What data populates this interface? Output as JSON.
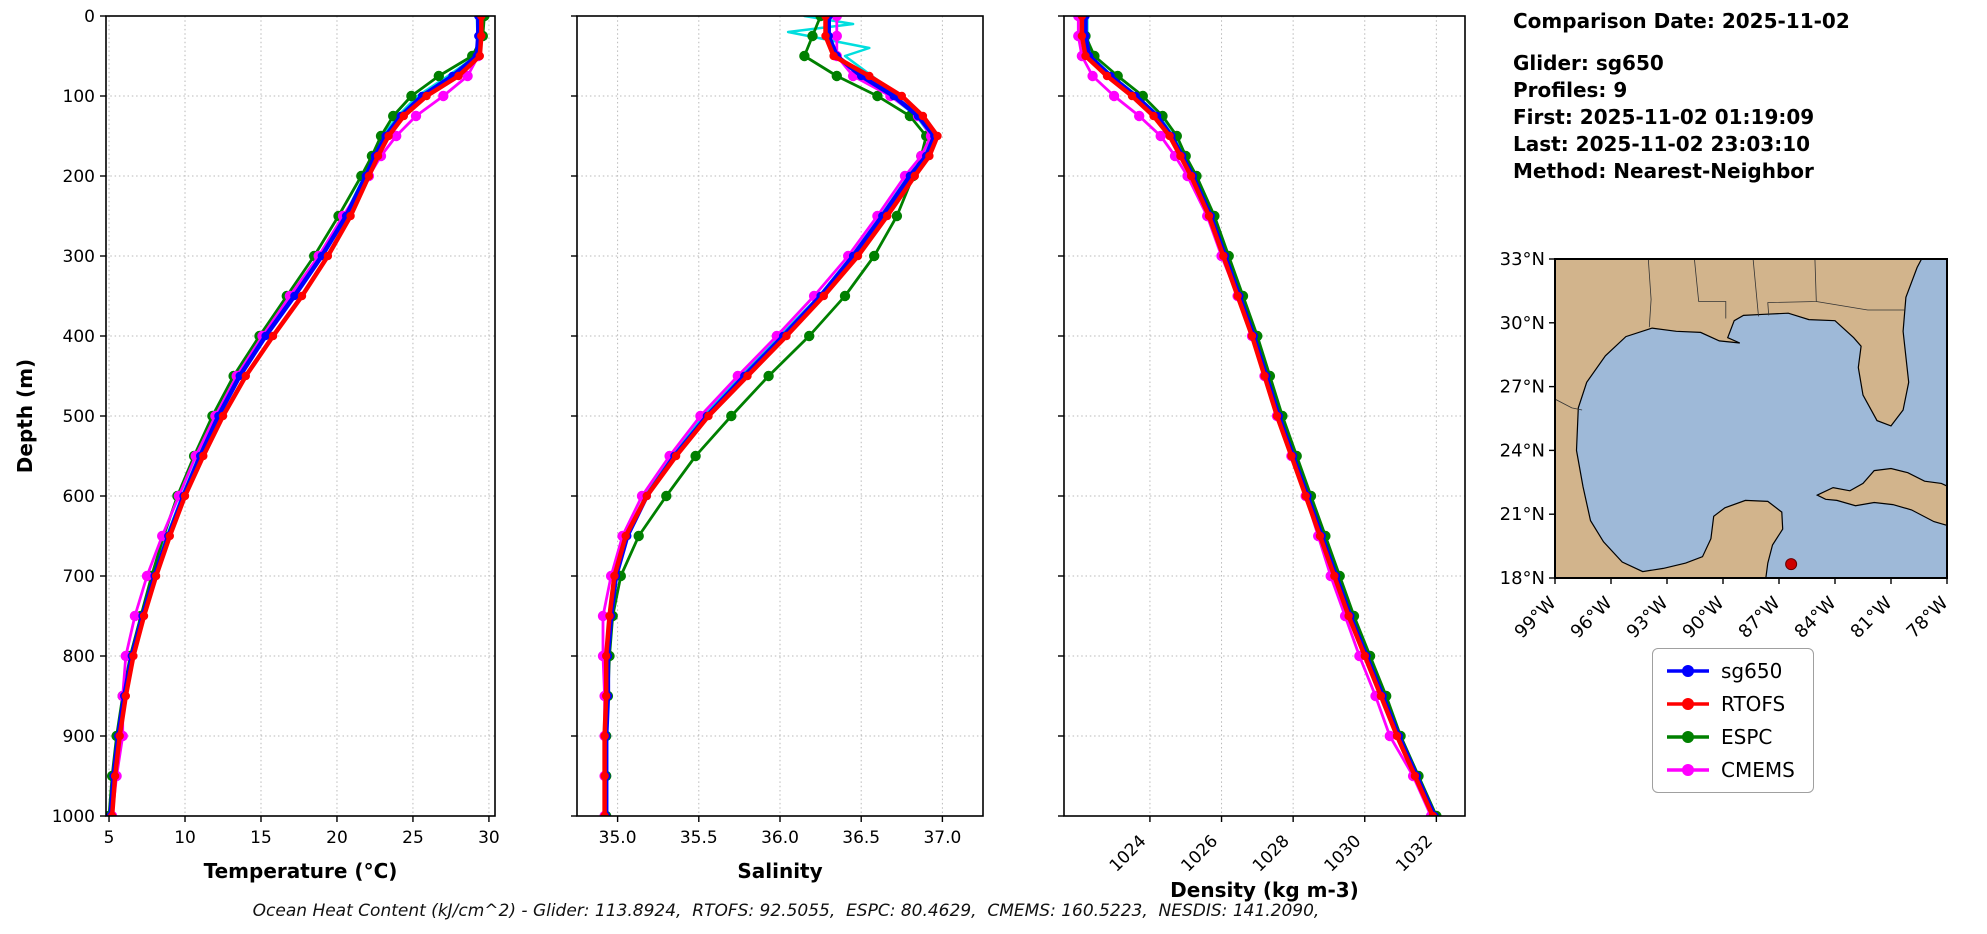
{
  "info_panel": {
    "lines": [
      "Comparison Date: 2025-11-02",
      "",
      "Glider: sg650",
      "Profiles: 9",
      "First: 2025-11-02 01:19:09",
      "Last: 2025-11-02 23:03:10",
      "Method: Nearest-Neighbor"
    ]
  },
  "caption": "Ocean Heat Content (kJ/cm^2) - Glider: 113.8924,  RTOFS: 92.5055,  ESPC: 80.4629,  CMEMS: 160.5223,  NESDIS: 141.2090,",
  "legend": {
    "items": [
      {
        "label": "sg650",
        "color": "#0000ff"
      },
      {
        "label": "RTOFS",
        "color": "#ff0000"
      },
      {
        "label": "ESPC",
        "color": "#008000"
      },
      {
        "label": "CMEMS",
        "color": "#ff00ff"
      }
    ]
  },
  "map": {
    "extent": {
      "lon_west": 99,
      "lon_east": 78,
      "lat_south": 18,
      "lat_north": 33
    },
    "land_color": "#d2b48c",
    "water_color": "#9eb9d8",
    "marker": {
      "lon": 86.35,
      "lat": 18.65,
      "color": "#cc0000"
    },
    "lat_ticks": [
      {
        "value": 33,
        "label": "33°N"
      },
      {
        "value": 30,
        "label": "30°N"
      },
      {
        "value": 27,
        "label": "27°N"
      },
      {
        "value": 24,
        "label": "24°N"
      },
      {
        "value": 21,
        "label": "21°N"
      },
      {
        "value": 18,
        "label": "18°N"
      }
    ],
    "lon_ticks": [
      {
        "value": 99,
        "label": "99°W"
      },
      {
        "value": 96,
        "label": "96°W"
      },
      {
        "value": 93,
        "label": "93°W"
      },
      {
        "value": 90,
        "label": "90°W"
      },
      {
        "value": 87,
        "label": "87°W"
      },
      {
        "value": 84,
        "label": "84°W"
      },
      {
        "value": 81,
        "label": "81°W"
      },
      {
        "value": 78,
        "label": "78°W"
      }
    ]
  },
  "chart_data": [
    {
      "type": "line",
      "xlabel": "Temperature (°C)",
      "ylabel": "Depth (m)",
      "xlim": [
        4.8,
        30.4
      ],
      "ylim": [
        0,
        1000
      ],
      "xticks": [
        5,
        10,
        15,
        20,
        25,
        30
      ],
      "xtick_labels": [
        "5",
        "10",
        "15",
        "20",
        "25",
        "30"
      ],
      "yticks": [
        0,
        100,
        200,
        300,
        400,
        500,
        600,
        700,
        800,
        900,
        1000
      ],
      "grid": true,
      "depths": [
        0,
        25,
        50,
        75,
        100,
        125,
        150,
        175,
        200,
        250,
        300,
        350,
        400,
        450,
        500,
        550,
        600,
        650,
        700,
        750,
        800,
        850,
        900,
        950,
        1000
      ],
      "series": [
        {
          "name": "glider-individual-profiles",
          "color": "#00dede",
          "lw": 2.5,
          "marker": false,
          "values": [
            29.2,
            29.25,
            29.15,
            27.3,
            25.3,
            24.0,
            23.0,
            22.4,
            21.8,
            20.5,
            18.9,
            17.1,
            15.2,
            13.5,
            12.1,
            10.9,
            9.8,
            8.8,
            7.9,
            7.1,
            6.4,
            5.95,
            5.55,
            5.25,
            5.05
          ]
        },
        {
          "name": "ESPC",
          "color": "#008000",
          "lw": 2.8,
          "marker": true,
          "ms": 5.2,
          "values": [
            29.7,
            29.6,
            28.9,
            26.7,
            24.9,
            23.7,
            22.9,
            22.3,
            21.6,
            20.1,
            18.5,
            16.7,
            14.9,
            13.2,
            11.8,
            10.6,
            9.5,
            8.6,
            7.8,
            7.1,
            6.4,
            5.9,
            5.5,
            5.2,
            5.0
          ]
        },
        {
          "name": "CMEMS",
          "color": "#ff00ff",
          "lw": 2.8,
          "marker": true,
          "ms": 5.2,
          "values": [
            29.4,
            29.4,
            29.3,
            28.6,
            27.0,
            25.2,
            23.9,
            22.9,
            22.1,
            20.4,
            18.8,
            16.9,
            15.1,
            13.4,
            12.0,
            10.7,
            9.6,
            8.5,
            7.5,
            6.7,
            6.1,
            5.9,
            5.9,
            5.5,
            5.2
          ]
        },
        {
          "name": "sg650",
          "color": "#0000ff",
          "lw": 4.5,
          "marker": true,
          "ms": 4.2,
          "values": [
            29.3,
            29.3,
            29.2,
            27.6,
            25.6,
            24.2,
            23.2,
            22.5,
            21.9,
            20.6,
            19.0,
            17.2,
            15.3,
            13.6,
            12.2,
            11.0,
            9.9,
            8.9,
            8.0,
            7.2,
            6.5,
            6.0,
            5.6,
            5.3,
            5.1
          ]
        },
        {
          "name": "RTOFS",
          "color": "#ff0000",
          "lw": 4.5,
          "marker": true,
          "ms": 4.2,
          "values": [
            29.5,
            29.5,
            29.4,
            28.0,
            25.9,
            24.4,
            23.4,
            22.7,
            22.1,
            20.9,
            19.4,
            17.7,
            15.8,
            14.0,
            12.5,
            11.2,
            10.0,
            9.0,
            8.1,
            7.3,
            6.6,
            6.1,
            5.7,
            5.4,
            5.2
          ]
        }
      ]
    },
    {
      "type": "line",
      "xlabel": "Salinity",
      "ylabel": "",
      "xlim": [
        34.75,
        37.25
      ],
      "ylim": [
        0,
        1000
      ],
      "xticks": [
        35.0,
        35.5,
        36.0,
        36.5,
        37.0
      ],
      "xtick_labels": [
        "35.0",
        "35.5",
        "36.0",
        "36.5",
        "37.0"
      ],
      "yticks": [
        0,
        100,
        200,
        300,
        400,
        500,
        600,
        700,
        800,
        900,
        1000
      ],
      "grid": true,
      "depths": [
        0,
        25,
        50,
        75,
        100,
        125,
        150,
        175,
        200,
        250,
        300,
        350,
        400,
        450,
        500,
        550,
        600,
        650,
        700,
        750,
        800,
        850,
        900,
        950,
        1000
      ],
      "series": [
        {
          "name": "glider-individual-profiles",
          "color": "#00dede",
          "lw": 2.5,
          "marker": false,
          "depths": [
            0,
            10,
            20,
            30,
            40,
            50,
            65,
            80,
            100,
            125,
            150,
            175,
            200,
            250,
            300,
            350,
            400,
            450,
            500,
            550,
            600,
            650,
            700,
            750,
            800,
            850,
            900,
            950,
            1000
          ],
          "values": [
            36.15,
            36.45,
            36.05,
            36.3,
            36.55,
            36.4,
            36.5,
            36.6,
            36.68,
            36.84,
            36.93,
            36.89,
            36.79,
            36.62,
            36.44,
            36.24,
            36.0,
            35.76,
            35.53,
            35.33,
            35.17,
            35.05,
            34.98,
            34.95,
            34.94,
            34.93,
            34.93,
            34.93,
            34.93
          ]
        },
        {
          "name": "ESPC",
          "color": "#008000",
          "lw": 2.8,
          "marker": true,
          "ms": 5.2,
          "values": [
            36.25,
            36.2,
            36.15,
            36.35,
            36.6,
            36.8,
            36.9,
            36.87,
            36.82,
            36.72,
            36.58,
            36.4,
            36.18,
            35.93,
            35.7,
            35.48,
            35.3,
            35.13,
            35.02,
            34.97,
            34.95,
            34.94,
            34.93,
            34.93,
            34.93
          ]
        },
        {
          "name": "CMEMS",
          "color": "#ff00ff",
          "lw": 2.8,
          "marker": true,
          "ms": 5.2,
          "values": [
            36.35,
            36.35,
            36.35,
            36.45,
            36.68,
            36.85,
            36.93,
            36.87,
            36.77,
            36.6,
            36.42,
            36.21,
            35.98,
            35.74,
            35.51,
            35.32,
            35.15,
            35.03,
            34.96,
            34.91,
            34.91,
            34.92,
            34.92,
            34.92,
            34.92
          ]
        },
        {
          "name": "sg650",
          "color": "#0000ff",
          "lw": 4.5,
          "marker": true,
          "ms": 4.2,
          "values": [
            36.3,
            36.3,
            36.35,
            36.5,
            36.7,
            36.85,
            36.95,
            36.9,
            36.8,
            36.63,
            36.45,
            36.25,
            36.02,
            35.78,
            35.55,
            35.35,
            35.18,
            35.06,
            34.99,
            34.96,
            34.94,
            34.94,
            34.93,
            34.93,
            34.93
          ]
        },
        {
          "name": "RTOFS",
          "color": "#ff0000",
          "lw": 4.5,
          "marker": true,
          "ms": 4.2,
          "values": [
            36.28,
            36.28,
            36.33,
            36.55,
            36.75,
            36.88,
            36.97,
            36.92,
            36.83,
            36.66,
            36.48,
            36.27,
            36.04,
            35.8,
            35.56,
            35.36,
            35.18,
            35.05,
            34.98,
            34.95,
            34.93,
            34.93,
            34.92,
            34.92,
            34.92
          ]
        }
      ]
    },
    {
      "type": "line",
      "xlabel": "Density (kg m-3)",
      "ylabel": "",
      "xlim": [
        1021.6,
        1032.8
      ],
      "ylim": [
        0,
        1000
      ],
      "xticks": [
        1024,
        1026,
        1028,
        1030,
        1032
      ],
      "xtick_labels": [
        "1024",
        "1026",
        "1028",
        "1030",
        "1032"
      ],
      "yticks": [
        0,
        100,
        200,
        300,
        400,
        500,
        600,
        700,
        800,
        900,
        1000
      ],
      "grid": true,
      "depths": [
        0,
        25,
        50,
        75,
        100,
        125,
        150,
        175,
        200,
        250,
        300,
        350,
        400,
        450,
        500,
        550,
        600,
        650,
        700,
        750,
        800,
        850,
        900,
        950,
        1000
      ],
      "series": [
        {
          "name": "glider-individual-profiles",
          "color": "#00dede",
          "lw": 2.5,
          "marker": false,
          "values": [
            1022.25,
            1022.25,
            1022.35,
            1022.95,
            1023.65,
            1024.25,
            1024.65,
            1024.95,
            1025.25,
            1025.75,
            1026.15,
            1026.55,
            1026.95,
            1027.3,
            1027.65,
            1028.05,
            1028.45,
            1028.85,
            1029.25,
            1029.65,
            1030.1,
            1030.55,
            1031.0,
            1031.5,
            1032.0
          ]
        },
        {
          "name": "ESPC",
          "color": "#008000",
          "lw": 2.8,
          "marker": true,
          "ms": 5.2,
          "values": [
            1022.15,
            1022.2,
            1022.45,
            1023.1,
            1023.8,
            1024.35,
            1024.75,
            1025.0,
            1025.3,
            1025.8,
            1026.2,
            1026.6,
            1027.0,
            1027.35,
            1027.7,
            1028.1,
            1028.5,
            1028.9,
            1029.3,
            1029.7,
            1030.15,
            1030.6,
            1031.0,
            1031.5,
            1032.0
          ]
        },
        {
          "name": "CMEMS",
          "color": "#ff00ff",
          "lw": 2.8,
          "marker": true,
          "ms": 5.2,
          "values": [
            1022.0,
            1022.0,
            1022.1,
            1022.4,
            1023.0,
            1023.7,
            1024.3,
            1024.7,
            1025.05,
            1025.6,
            1026.0,
            1026.45,
            1026.85,
            1027.2,
            1027.55,
            1027.95,
            1028.35,
            1028.7,
            1029.05,
            1029.45,
            1029.85,
            1030.3,
            1030.7,
            1031.35,
            1031.85
          ]
        },
        {
          "name": "sg650",
          "color": "#0000ff",
          "lw": 4.5,
          "marker": true,
          "ms": 4.2,
          "values": [
            1022.2,
            1022.2,
            1022.3,
            1022.9,
            1023.6,
            1024.2,
            1024.6,
            1024.9,
            1025.2,
            1025.7,
            1026.1,
            1026.5,
            1026.9,
            1027.25,
            1027.6,
            1028.0,
            1028.4,
            1028.8,
            1029.2,
            1029.6,
            1030.05,
            1030.5,
            1030.95,
            1031.45,
            1031.95
          ]
        },
        {
          "name": "RTOFS",
          "color": "#ff0000",
          "lw": 4.5,
          "marker": true,
          "ms": 4.2,
          "values": [
            1022.1,
            1022.1,
            1022.2,
            1022.8,
            1023.5,
            1024.1,
            1024.55,
            1024.85,
            1025.15,
            1025.65,
            1026.05,
            1026.45,
            1026.85,
            1027.2,
            1027.55,
            1027.95,
            1028.35,
            1028.75,
            1029.15,
            1029.55,
            1030.0,
            1030.45,
            1030.9,
            1031.4,
            1031.9
          ]
        }
      ]
    }
  ]
}
